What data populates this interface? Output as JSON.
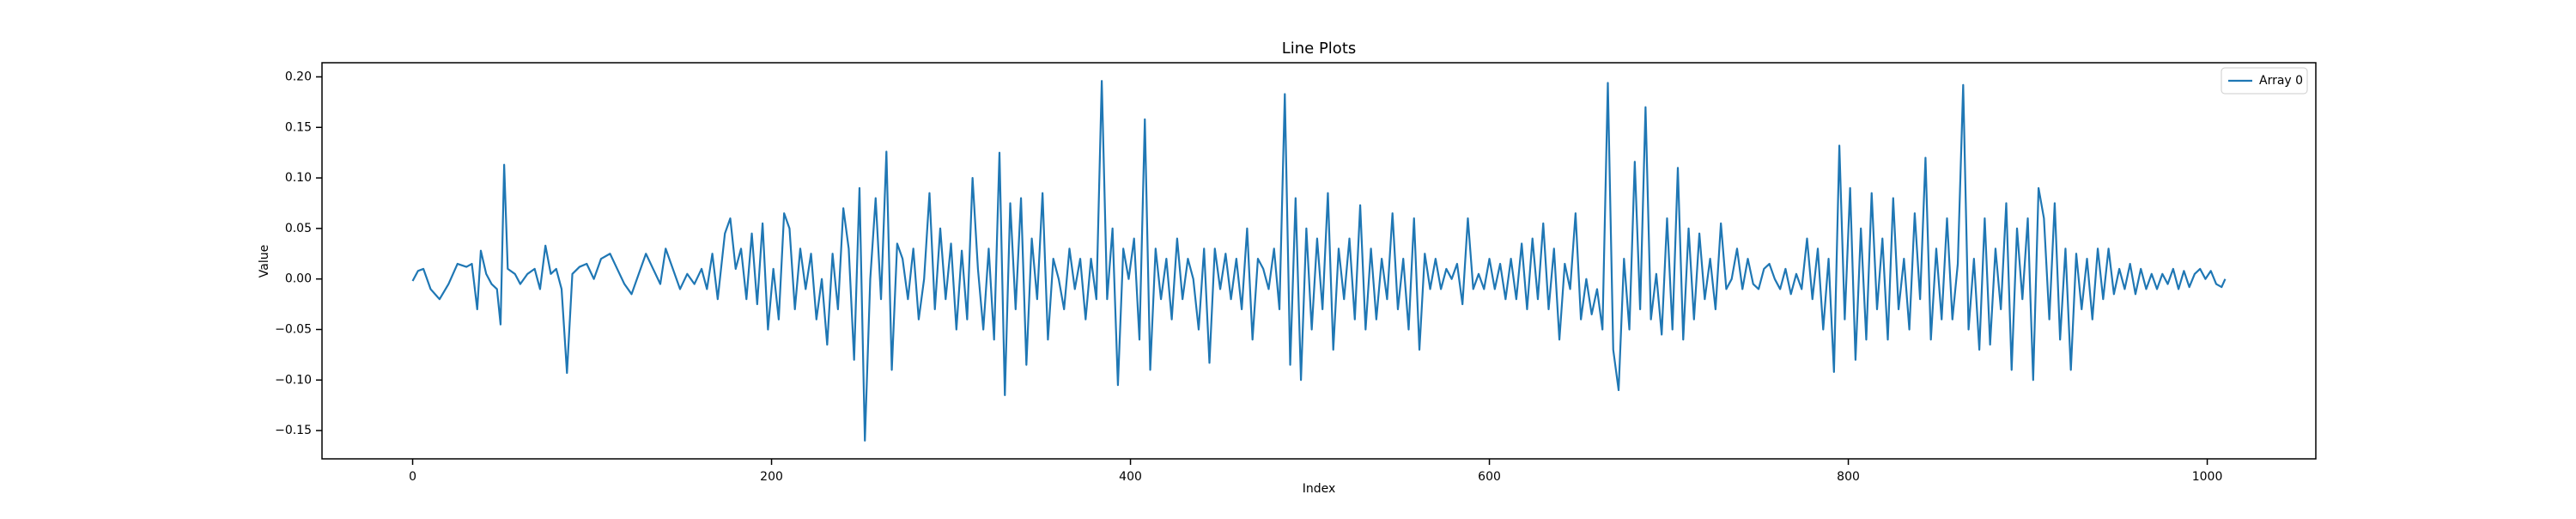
{
  "chart_data": {
    "type": "line",
    "title": "Line Plots",
    "xlabel": "Index",
    "ylabel": "Value",
    "legend": "upper right",
    "xlim": [
      -50.5,
      1060.5
    ],
    "ylim": [
      -0.178,
      0.214
    ],
    "xticks": [
      0,
      200,
      400,
      600,
      800,
      1000
    ],
    "yticks": [
      {
        "value": -0.15,
        "label": "−0.15"
      },
      {
        "value": -0.1,
        "label": "−0.10"
      },
      {
        "value": -0.05,
        "label": "−0.05"
      },
      {
        "value": 0,
        "label": "0.00"
      },
      {
        "value": 0.05,
        "label": "0.05"
      },
      {
        "value": 0.1,
        "label": "0.10"
      },
      {
        "value": 0.15,
        "label": "0.15"
      },
      {
        "value": 0.2,
        "label": "0.20"
      }
    ],
    "x": [
      0,
      3,
      6,
      10,
      15,
      20,
      25,
      30,
      33,
      36,
      38,
      41,
      44,
      47,
      49,
      51,
      53,
      57,
      60,
      64,
      68,
      71,
      74,
      77,
      80,
      83,
      86,
      89,
      93,
      97,
      101,
      105,
      110,
      114,
      118,
      122,
      126,
      130,
      134,
      138,
      141,
      145,
      149,
      153,
      157,
      161,
      164,
      167,
      170,
      174,
      177,
      180,
      183,
      186,
      189,
      192,
      195,
      198,
      201,
      204,
      207,
      210,
      213,
      216,
      219,
      222,
      225,
      228,
      231,
      234,
      237,
      240,
      243,
      246,
      249,
      252,
      255,
      258,
      261,
      264,
      267,
      270,
      273,
      276,
      279,
      282,
      285,
      288,
      291,
      294,
      297,
      300,
      303,
      306,
      309,
      312,
      315,
      318,
      321,
      324,
      327,
      330,
      333,
      336,
      339,
      342,
      345,
      348,
      351,
      354,
      357,
      360,
      363,
      366,
      369,
      372,
      375,
      378,
      381,
      384,
      387,
      390,
      393,
      396,
      399,
      402,
      405,
      408,
      411,
      414,
      417,
      420,
      423,
      426,
      429,
      432,
      435,
      438,
      441,
      444,
      447,
      450,
      453,
      456,
      459,
      462,
      465,
      468,
      471,
      474,
      477,
      480,
      483,
      486,
      489,
      492,
      495,
      498,
      501,
      504,
      507,
      510,
      513,
      516,
      519,
      522,
      525,
      528,
      531,
      534,
      537,
      540,
      543,
      546,
      549,
      552,
      555,
      558,
      561,
      564,
      567,
      570,
      573,
      576,
      579,
      582,
      585,
      588,
      591,
      594,
      597,
      600,
      603,
      606,
      609,
      612,
      615,
      618,
      621,
      624,
      627,
      630,
      633,
      636,
      639,
      642,
      645,
      648,
      651,
      654,
      657,
      660,
      663,
      666,
      669,
      672,
      675,
      678,
      681,
      684,
      687,
      690,
      693,
      696,
      699,
      702,
      705,
      708,
      711,
      714,
      717,
      720,
      723,
      726,
      729,
      732,
      735,
      738,
      741,
      744,
      747,
      750,
      753,
      756,
      759,
      762,
      765,
      768,
      771,
      774,
      777,
      780,
      783,
      786,
      789,
      792,
      795,
      798,
      801,
      804,
      807,
      810,
      813,
      816,
      819,
      822,
      825,
      828,
      831,
      834,
      837,
      840,
      843,
      846,
      849,
      852,
      855,
      858,
      861,
      864,
      867,
      870,
      873,
      876,
      879,
      882,
      885,
      888,
      891,
      894,
      897,
      900,
      903,
      906,
      909,
      912,
      915,
      918,
      921,
      924,
      927,
      930,
      933,
      936,
      939,
      942,
      945,
      948,
      951,
      954,
      957,
      960,
      963,
      966,
      969,
      972,
      975,
      978,
      981,
      984,
      987,
      990,
      993,
      996,
      999,
      1002,
      1005,
      1008,
      1010
    ],
    "series": [
      {
        "name": "Array 0",
        "color": "#1f77b4",
        "values": [
          -0.002,
          0.008,
          0.01,
          -0.01,
          -0.02,
          -0.005,
          0.015,
          0.012,
          0.015,
          -0.03,
          0.028,
          0.005,
          -0.005,
          -0.01,
          -0.045,
          0.113,
          0.01,
          0.005,
          -0.005,
          0.005,
          0.01,
          -0.01,
          0.033,
          0.005,
          0.01,
          -0.01,
          -0.093,
          0.005,
          0.012,
          0.015,
          0.0,
          0.02,
          0.025,
          0.01,
          -0.005,
          -0.015,
          0.005,
          0.025,
          0.01,
          -0.005,
          0.03,
          0.01,
          -0.01,
          0.005,
          -0.005,
          0.01,
          -0.01,
          0.025,
          -0.02,
          0.045,
          0.06,
          0.01,
          0.03,
          -0.02,
          0.045,
          -0.025,
          0.055,
          -0.05,
          0.01,
          -0.04,
          0.065,
          0.05,
          -0.03,
          0.03,
          -0.01,
          0.025,
          -0.04,
          0.0,
          -0.065,
          0.025,
          -0.03,
          0.07,
          0.03,
          -0.08,
          0.09,
          -0.16,
          0.0,
          0.08,
          -0.02,
          0.126,
          -0.09,
          0.035,
          0.02,
          -0.02,
          0.03,
          -0.04,
          0.0,
          0.085,
          -0.03,
          0.05,
          -0.02,
          0.035,
          -0.05,
          0.028,
          -0.04,
          0.1,
          0.01,
          -0.05,
          0.03,
          -0.06,
          0.125,
          -0.115,
          0.075,
          -0.03,
          0.08,
          -0.085,
          0.04,
          -0.02,
          0.085,
          -0.06,
          0.02,
          0.0,
          -0.03,
          0.03,
          -0.01,
          0.02,
          -0.04,
          0.02,
          -0.02,
          0.196,
          -0.02,
          0.05,
          -0.105,
          0.03,
          0.0,
          0.04,
          -0.06,
          0.158,
          -0.09,
          0.03,
          -0.02,
          0.02,
          -0.04,
          0.04,
          -0.02,
          0.02,
          0.0,
          -0.05,
          0.03,
          -0.083,
          0.03,
          -0.01,
          0.025,
          -0.02,
          0.02,
          -0.03,
          0.05,
          -0.06,
          0.02,
          0.01,
          -0.01,
          0.03,
          -0.03,
          0.183,
          -0.085,
          0.08,
          -0.1,
          0.05,
          -0.05,
          0.04,
          -0.03,
          0.085,
          -0.07,
          0.03,
          -0.02,
          0.04,
          -0.04,
          0.073,
          -0.05,
          0.03,
          -0.04,
          0.02,
          -0.02,
          0.065,
          -0.03,
          0.02,
          -0.05,
          0.06,
          -0.07,
          0.025,
          -0.01,
          0.02,
          -0.01,
          0.01,
          0.0,
          0.015,
          -0.025,
          0.06,
          -0.01,
          0.005,
          -0.01,
          0.02,
          -0.01,
          0.015,
          -0.02,
          0.02,
          -0.02,
          0.035,
          -0.03,
          0.04,
          -0.02,
          0.055,
          -0.03,
          0.03,
          -0.06,
          0.015,
          -0.01,
          0.065,
          -0.04,
          0.0,
          -0.035,
          -0.01,
          -0.05,
          0.194,
          -0.07,
          -0.11,
          0.02,
          -0.05,
          0.116,
          -0.03,
          0.17,
          -0.04,
          0.005,
          -0.055,
          0.06,
          -0.05,
          0.11,
          -0.06,
          0.05,
          -0.04,
          0.045,
          -0.02,
          0.02,
          -0.03,
          0.055,
          -0.01,
          0.0,
          0.03,
          -0.01,
          0.02,
          -0.005,
          -0.01,
          0.01,
          0.015,
          0.0,
          -0.01,
          0.01,
          -0.015,
          0.005,
          -0.01,
          0.04,
          -0.02,
          0.03,
          -0.05,
          0.02,
          -0.092,
          0.132,
          -0.04,
          0.09,
          -0.08,
          0.05,
          -0.06,
          0.085,
          -0.03,
          0.04,
          -0.06,
          0.08,
          -0.03,
          0.02,
          -0.05,
          0.065,
          -0.02,
          0.12,
          -0.06,
          0.03,
          -0.04,
          0.06,
          -0.04,
          0.015,
          0.192,
          -0.05,
          0.02,
          -0.07,
          0.06,
          -0.065,
          0.03,
          -0.03,
          0.075,
          -0.09,
          0.05,
          -0.02,
          0.06,
          -0.1,
          0.09,
          0.06,
          -0.04,
          0.075,
          -0.06,
          0.03,
          -0.09,
          0.025,
          -0.03,
          0.02,
          -0.04,
          0.03,
          -0.02,
          0.03,
          -0.015,
          0.01,
          -0.01,
          0.015,
          -0.015,
          0.01,
          -0.01,
          0.005,
          -0.01,
          0.005,
          -0.005,
          0.01,
          -0.01,
          0.008,
          -0.008,
          0.005,
          0.01,
          0.0,
          0.008,
          -0.005,
          -0.008,
          0.0
        ]
      }
    ]
  }
}
